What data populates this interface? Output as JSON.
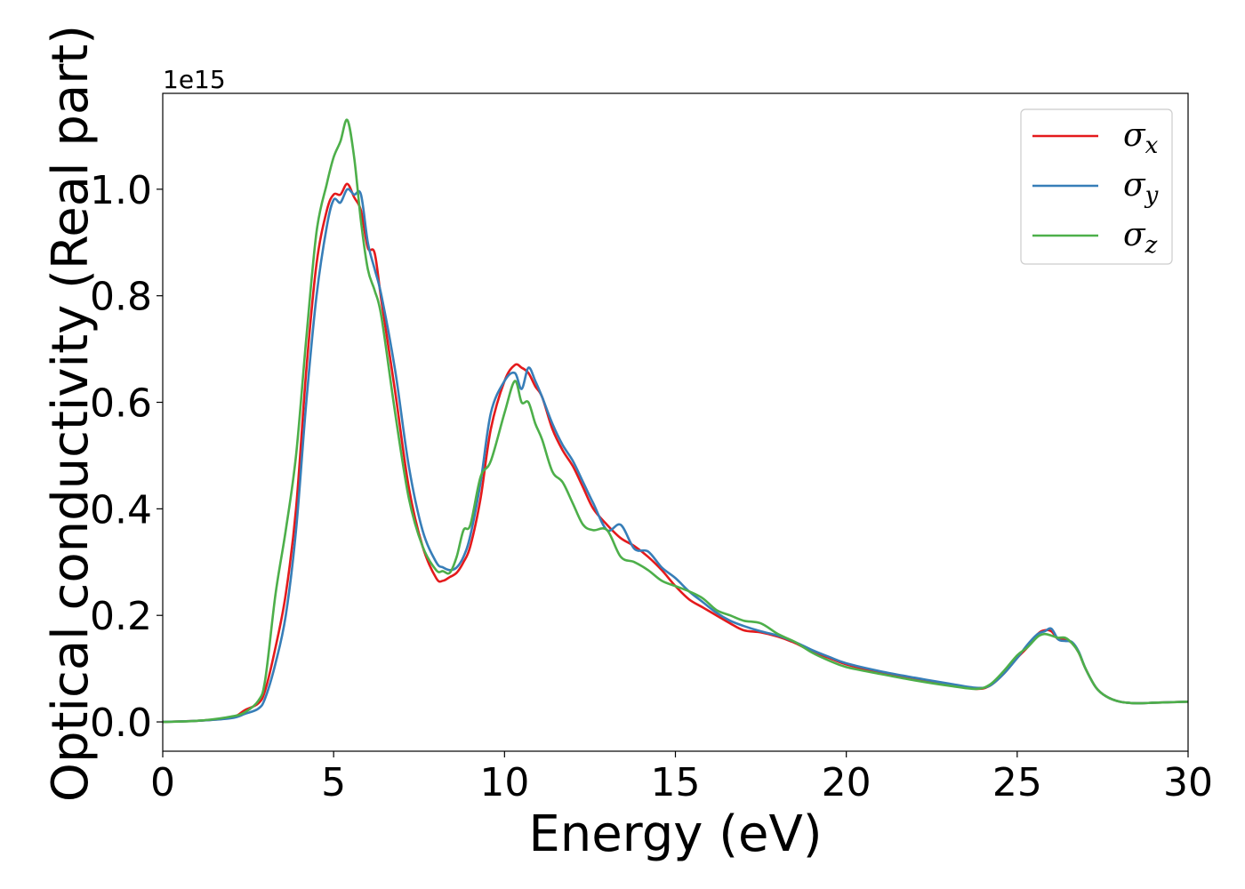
{
  "chart_data": {
    "type": "line",
    "xlabel": "Energy (eV)",
    "ylabel": "Optical conductivity (Real part)",
    "y_offset_label": "1e15",
    "xlim": [
      0,
      30
    ],
    "ylim": [
      -0.055,
      1.18
    ],
    "x_ticks": [
      0,
      5,
      10,
      15,
      20,
      25,
      30
    ],
    "x_tick_labels": [
      "0",
      "5",
      "10",
      "15",
      "20",
      "25",
      "30"
    ],
    "y_ticks": [
      0.0,
      0.2,
      0.4,
      0.6,
      0.8,
      1.0
    ],
    "y_tick_labels": [
      "0.0",
      "0.2",
      "0.4",
      "0.6",
      "0.8",
      "1.0"
    ],
    "grid": false,
    "legend_position": "top-right",
    "series": [
      {
        "name": "σ",
        "subscript": "x",
        "color": "#e41a1c",
        "x": [
          0,
          1,
          2,
          2.4,
          2.8,
          3.0,
          3.3,
          3.6,
          3.9,
          4.2,
          4.5,
          4.8,
          5.0,
          5.2,
          5.4,
          5.6,
          5.8,
          6.0,
          6.2,
          6.4,
          6.8,
          7.2,
          7.6,
          8.0,
          8.2,
          8.4,
          8.6,
          8.8,
          9.0,
          9.3,
          9.6,
          10.0,
          10.3,
          10.5,
          10.7,
          10.9,
          11.1,
          11.4,
          11.7,
          12.0,
          12.3,
          12.6,
          13.0,
          13.4,
          13.8,
          14.2,
          14.6,
          15.0,
          15.4,
          15.8,
          16.2,
          16.6,
          17.0,
          17.5,
          18.0,
          18.5,
          19.0,
          19.5,
          20.0,
          21.0,
          22.0,
          23.0,
          23.8,
          24.2,
          24.6,
          25.0,
          25.3,
          25.6,
          25.8,
          26.0,
          26.2,
          26.4,
          26.6,
          26.8,
          27.0,
          27.3,
          27.6,
          28.0,
          28.5,
          29.0,
          29.5,
          30.0
        ],
        "y": [
          0.0,
          0.002,
          0.008,
          0.022,
          0.035,
          0.06,
          0.14,
          0.24,
          0.4,
          0.66,
          0.86,
          0.96,
          0.99,
          0.99,
          1.01,
          0.985,
          0.96,
          0.89,
          0.88,
          0.79,
          0.62,
          0.44,
          0.33,
          0.27,
          0.265,
          0.272,
          0.28,
          0.3,
          0.33,
          0.42,
          0.55,
          0.64,
          0.67,
          0.665,
          0.655,
          0.63,
          0.61,
          0.55,
          0.51,
          0.48,
          0.44,
          0.4,
          0.37,
          0.345,
          0.33,
          0.31,
          0.285,
          0.255,
          0.23,
          0.215,
          0.2,
          0.185,
          0.172,
          0.168,
          0.16,
          0.148,
          0.132,
          0.12,
          0.108,
          0.093,
          0.082,
          0.07,
          0.062,
          0.068,
          0.09,
          0.12,
          0.14,
          0.165,
          0.172,
          0.17,
          0.155,
          0.155,
          0.148,
          0.13,
          0.1,
          0.065,
          0.048,
          0.038,
          0.035,
          0.036,
          0.037,
          0.038
        ]
      },
      {
        "name": "σ",
        "subscript": "y",
        "color": "#377eb8",
        "x": [
          0,
          1,
          2,
          2.4,
          2.8,
          3.0,
          3.3,
          3.6,
          3.9,
          4.2,
          4.5,
          4.8,
          5.0,
          5.2,
          5.4,
          5.6,
          5.8,
          6.0,
          6.2,
          6.4,
          6.8,
          7.2,
          7.6,
          8.0,
          8.2,
          8.4,
          8.6,
          8.8,
          9.0,
          9.3,
          9.6,
          10.0,
          10.3,
          10.5,
          10.7,
          10.9,
          11.1,
          11.4,
          11.7,
          12.0,
          12.3,
          12.6,
          13.0,
          13.4,
          13.8,
          14.2,
          14.6,
          15.0,
          15.4,
          15.8,
          16.2,
          16.6,
          17.0,
          17.5,
          18.0,
          18.5,
          19.0,
          19.5,
          20.0,
          21.0,
          22.0,
          23.0,
          23.8,
          24.2,
          24.6,
          25.0,
          25.3,
          25.6,
          25.8,
          26.0,
          26.2,
          26.4,
          26.6,
          26.8,
          27.0,
          27.3,
          27.6,
          28.0,
          28.5,
          29.0,
          29.5,
          30.0
        ],
        "y": [
          0.0,
          0.002,
          0.007,
          0.015,
          0.025,
          0.045,
          0.11,
          0.2,
          0.36,
          0.6,
          0.8,
          0.93,
          0.98,
          0.975,
          1.0,
          0.99,
          0.99,
          0.9,
          0.85,
          0.8,
          0.66,
          0.48,
          0.36,
          0.3,
          0.29,
          0.285,
          0.29,
          0.31,
          0.35,
          0.45,
          0.58,
          0.64,
          0.655,
          0.625,
          0.665,
          0.64,
          0.61,
          0.56,
          0.52,
          0.49,
          0.45,
          0.41,
          0.36,
          0.37,
          0.325,
          0.32,
          0.29,
          0.27,
          0.245,
          0.225,
          0.205,
          0.19,
          0.18,
          0.17,
          0.162,
          0.15,
          0.135,
          0.122,
          0.11,
          0.095,
          0.083,
          0.072,
          0.064,
          0.068,
          0.09,
          0.12,
          0.145,
          0.165,
          0.17,
          0.175,
          0.155,
          0.152,
          0.15,
          0.132,
          0.1,
          0.065,
          0.048,
          0.038,
          0.035,
          0.036,
          0.037,
          0.038
        ]
      },
      {
        "name": "σ",
        "subscript": "z",
        "color": "#4daf4a",
        "x": [
          0,
          1,
          2,
          2.4,
          2.8,
          3.0,
          3.3,
          3.6,
          3.9,
          4.2,
          4.5,
          4.8,
          5.0,
          5.2,
          5.4,
          5.6,
          5.8,
          6.0,
          6.2,
          6.4,
          6.8,
          7.2,
          7.6,
          8.0,
          8.2,
          8.4,
          8.6,
          8.8,
          9.0,
          9.3,
          9.6,
          10.0,
          10.3,
          10.5,
          10.7,
          10.9,
          11.1,
          11.4,
          11.7,
          12.0,
          12.3,
          12.6,
          13.0,
          13.4,
          13.8,
          14.2,
          14.6,
          15.0,
          15.4,
          15.8,
          16.2,
          16.6,
          17.0,
          17.5,
          18.0,
          18.5,
          19.0,
          19.5,
          20.0,
          21.0,
          22.0,
          23.0,
          23.8,
          24.2,
          24.6,
          25.0,
          25.3,
          25.6,
          25.8,
          26.0,
          26.2,
          26.4,
          26.6,
          26.8,
          27.0,
          27.3,
          27.6,
          28.0,
          28.5,
          29.0,
          29.5,
          30.0
        ],
        "y": [
          0.0,
          0.002,
          0.01,
          0.018,
          0.04,
          0.08,
          0.24,
          0.36,
          0.5,
          0.72,
          0.92,
          1.01,
          1.06,
          1.09,
          1.13,
          1.06,
          0.94,
          0.85,
          0.81,
          0.76,
          0.58,
          0.42,
          0.33,
          0.285,
          0.283,
          0.28,
          0.31,
          0.36,
          0.37,
          0.46,
          0.49,
          0.58,
          0.64,
          0.6,
          0.6,
          0.56,
          0.53,
          0.47,
          0.45,
          0.41,
          0.37,
          0.36,
          0.36,
          0.31,
          0.3,
          0.285,
          0.265,
          0.255,
          0.245,
          0.232,
          0.21,
          0.2,
          0.19,
          0.185,
          0.165,
          0.15,
          0.13,
          0.115,
          0.103,
          0.09,
          0.078,
          0.068,
          0.062,
          0.07,
          0.095,
          0.125,
          0.14,
          0.16,
          0.165,
          0.162,
          0.158,
          0.158,
          0.148,
          0.13,
          0.1,
          0.065,
          0.048,
          0.038,
          0.035,
          0.036,
          0.037,
          0.038
        ]
      }
    ]
  }
}
